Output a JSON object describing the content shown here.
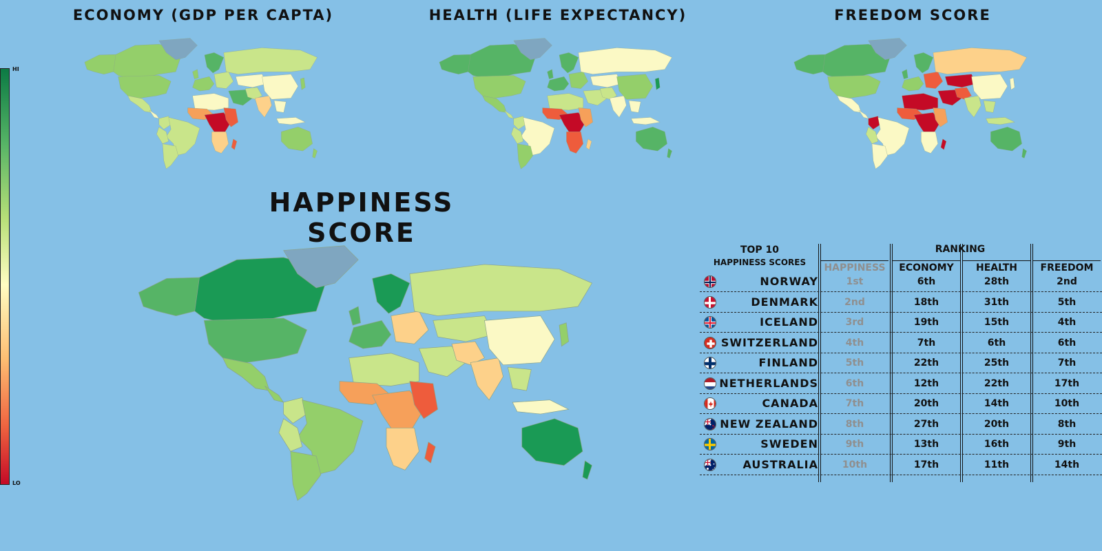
{
  "titles": {
    "economy": "ECONOMY (GDP PER CAPTA)",
    "health": "HEALTH (LIFE EXPECTANCY)",
    "freedom": "FREEDOM SCORE",
    "happiness": "HAPPINESS SCORE"
  },
  "legend": {
    "hi": "HI",
    "lo": "LO",
    "hi_color": "#0b7a44",
    "lo_color": "#c40a26"
  },
  "colors": {
    "ocean": "#85c0e6",
    "greenland": "#7fa6c0",
    "dark_green": "#1a9a55",
    "green": "#56b466",
    "light_green": "#94cf6a",
    "yellow_green": "#c9e58a",
    "pale_yellow": "#fbf9c5",
    "light_orange": "#fdd18a",
    "orange": "#f6a05a",
    "red_orange": "#ee5c3c",
    "dark_red": "#c40a26"
  },
  "table": {
    "header_line1": "TOP 10",
    "header_line2": "HAPPINESS SCORES",
    "ranking_label": "RANKING",
    "columns": [
      "HAPPINESS",
      "ECONOMY",
      "HEALTH",
      "FREEDOM"
    ],
    "rows": [
      {
        "country": "NORWAY",
        "flag": "norway-flag-icon",
        "happiness": "1st",
        "economy": "6th",
        "health": "28th",
        "freedom": "2nd"
      },
      {
        "country": "DENMARK",
        "flag": "denmark-flag-icon",
        "happiness": "2nd",
        "economy": "18th",
        "health": "31th",
        "freedom": "5th"
      },
      {
        "country": "ICELAND",
        "flag": "iceland-flag-icon",
        "happiness": "3rd",
        "economy": "19th",
        "health": "15th",
        "freedom": "4th"
      },
      {
        "country": "SWITZERLAND",
        "flag": "switzerland-flag-icon",
        "happiness": "4th",
        "economy": "7th",
        "health": "6th",
        "freedom": "6th"
      },
      {
        "country": "FINLAND",
        "flag": "finland-flag-icon",
        "happiness": "5th",
        "economy": "22th",
        "health": "25th",
        "freedom": "7th"
      },
      {
        "country": "NETHERLANDS",
        "flag": "netherlands-flag-icon",
        "happiness": "6th",
        "economy": "12th",
        "health": "22th",
        "freedom": "17th"
      },
      {
        "country": "CANADA",
        "flag": "canada-flag-icon",
        "happiness": "7th",
        "economy": "20th",
        "health": "14th",
        "freedom": "10th"
      },
      {
        "country": "NEW ZEALAND",
        "flag": "new-zealand-flag-icon",
        "happiness": "8th",
        "economy": "27th",
        "health": "20th",
        "freedom": "8th"
      },
      {
        "country": "SWEDEN",
        "flag": "sweden-flag-icon",
        "happiness": "9th",
        "economy": "13th",
        "health": "16th",
        "freedom": "9th"
      },
      {
        "country": "AUSTRALIA",
        "flag": "australia-flag-icon",
        "happiness": "10th",
        "economy": "17th",
        "health": "11th",
        "freedom": "14th"
      }
    ]
  }
}
